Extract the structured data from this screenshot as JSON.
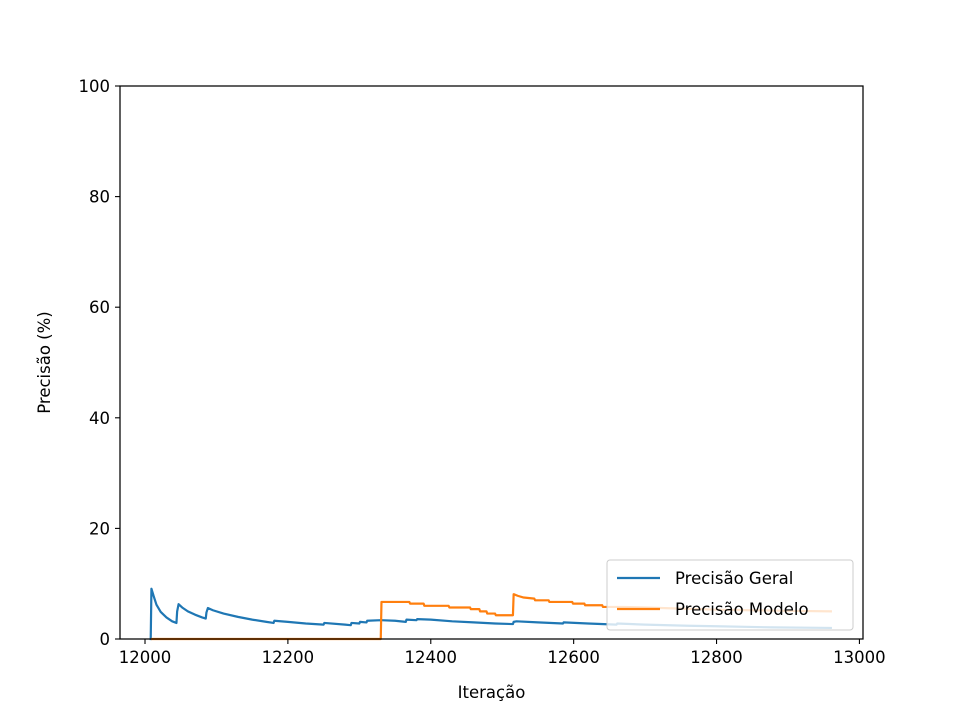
{
  "chart_data": {
    "type": "line",
    "title": "",
    "xlabel": "Iteração",
    "ylabel": "Precisão (%)",
    "xlim": [
      11965,
      13005
    ],
    "ylim": [
      0,
      100
    ],
    "xticks": [
      12000,
      12200,
      12400,
      12600,
      12800,
      13000
    ],
    "yticks": [
      0,
      20,
      40,
      60,
      80,
      100
    ],
    "grid": false,
    "legend": {
      "position": "lower-right"
    },
    "series": [
      {
        "name": "Precisão Geral",
        "color": "#1f77b4",
        "points": [
          [
            12008,
            0.0
          ],
          [
            12009,
            9.1
          ],
          [
            12012,
            7.8
          ],
          [
            12016,
            6.2
          ],
          [
            12022,
            4.9
          ],
          [
            12030,
            3.9
          ],
          [
            12038,
            3.2
          ],
          [
            12044,
            2.9
          ],
          [
            12045,
            5.0
          ],
          [
            12047,
            6.3
          ],
          [
            12052,
            5.7
          ],
          [
            12060,
            5.0
          ],
          [
            12070,
            4.4
          ],
          [
            12080,
            3.9
          ],
          [
            12085,
            3.7
          ],
          [
            12086,
            4.8
          ],
          [
            12088,
            5.6
          ],
          [
            12095,
            5.2
          ],
          [
            12110,
            4.6
          ],
          [
            12130,
            4.0
          ],
          [
            12150,
            3.5
          ],
          [
            12170,
            3.1
          ],
          [
            12180,
            2.9
          ],
          [
            12181,
            3.3
          ],
          [
            12200,
            3.1
          ],
          [
            12225,
            2.8
          ],
          [
            12250,
            2.6
          ],
          [
            12251,
            2.9
          ],
          [
            12280,
            2.6
          ],
          [
            12288,
            2.5
          ],
          [
            12289,
            2.9
          ],
          [
            12300,
            2.8
          ],
          [
            12301,
            3.1
          ],
          [
            12310,
            3.0
          ],
          [
            12311,
            3.3
          ],
          [
            12330,
            3.4
          ],
          [
            12350,
            3.3
          ],
          [
            12365,
            3.1
          ],
          [
            12366,
            3.5
          ],
          [
            12380,
            3.4
          ],
          [
            12381,
            3.6
          ],
          [
            12400,
            3.5
          ],
          [
            12430,
            3.2
          ],
          [
            12460,
            3.0
          ],
          [
            12490,
            2.8
          ],
          [
            12515,
            2.7
          ],
          [
            12516,
            3.1
          ],
          [
            12520,
            3.2
          ],
          [
            12550,
            3.0
          ],
          [
            12585,
            2.8
          ],
          [
            12586,
            3.0
          ],
          [
            12620,
            2.8
          ],
          [
            12660,
            2.6
          ],
          [
            12661,
            2.8
          ],
          [
            12700,
            2.6
          ],
          [
            12760,
            2.4
          ],
          [
            12800,
            2.3
          ],
          [
            12880,
            2.1
          ],
          [
            12960,
            2.0
          ]
        ]
      },
      {
        "name": "Precisão Modelo",
        "color": "#ff7f0e",
        "points": [
          [
            12010,
            0.0
          ],
          [
            12330,
            0.0
          ],
          [
            12331,
            6.7
          ],
          [
            12370,
            6.7
          ],
          [
            12371,
            6.4
          ],
          [
            12390,
            6.4
          ],
          [
            12391,
            6.0
          ],
          [
            12425,
            6.0
          ],
          [
            12426,
            5.7
          ],
          [
            12455,
            5.7
          ],
          [
            12456,
            5.4
          ],
          [
            12468,
            5.4
          ],
          [
            12469,
            5.0
          ],
          [
            12478,
            5.0
          ],
          [
            12479,
            4.6
          ],
          [
            12490,
            4.6
          ],
          [
            12491,
            4.3
          ],
          [
            12515,
            4.3
          ],
          [
            12516,
            8.1
          ],
          [
            12522,
            7.8
          ],
          [
            12530,
            7.5
          ],
          [
            12545,
            7.3
          ],
          [
            12546,
            7.0
          ],
          [
            12565,
            7.0
          ],
          [
            12566,
            6.7
          ],
          [
            12598,
            6.7
          ],
          [
            12599,
            6.4
          ],
          [
            12615,
            6.4
          ],
          [
            12616,
            6.1
          ],
          [
            12640,
            6.1
          ],
          [
            12641,
            5.8
          ],
          [
            12670,
            5.8
          ],
          [
            12700,
            5.7
          ],
          [
            12750,
            5.5
          ],
          [
            12800,
            5.3
          ],
          [
            12850,
            5.2
          ],
          [
            12900,
            5.1
          ],
          [
            12960,
            5.0
          ]
        ]
      }
    ]
  }
}
